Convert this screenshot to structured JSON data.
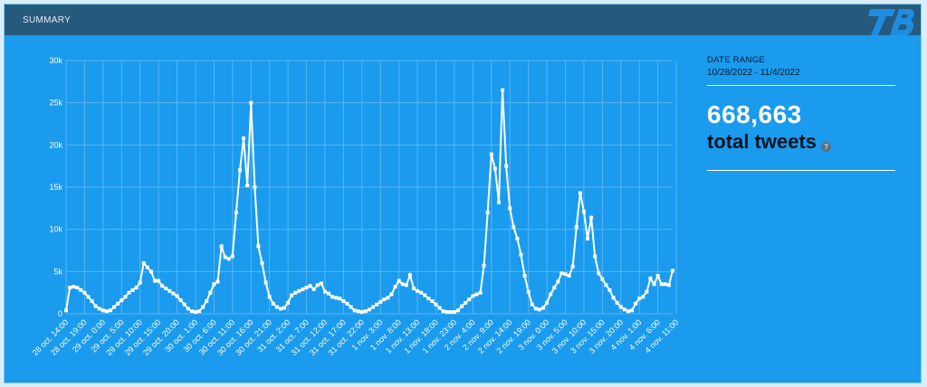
{
  "header": {
    "title": "SUMMARY",
    "logo_icon": "tb-logo-icon"
  },
  "side_panel": {
    "date_range_label": "DATE RANGE",
    "date_range_value": "10/28/2022 - 11/4/2022",
    "total_count": "668,663",
    "total_label": "total tweets",
    "help_icon": "?"
  },
  "colors": {
    "background": "#1a9bee",
    "header": "#265a7c",
    "line": "#ffffff",
    "grid": "#5ab6f3"
  },
  "chart_data": {
    "type": "line",
    "title": "",
    "xlabel": "",
    "ylabel": "",
    "ylim": [
      0,
      30000
    ],
    "y_ticks": [
      0,
      5000,
      10000,
      15000,
      20000,
      25000,
      30000
    ],
    "y_tick_labels": [
      "0",
      "5k",
      "10k",
      "15k",
      "20k",
      "25k",
      "30k"
    ],
    "grid": true,
    "tick_labels": [
      "28 oct. 14:00",
      "28 oct. 19:00",
      "29 oct. 0:00",
      "29 oct. 5:00",
      "29 oct. 10:00",
      "29 oct. 15:00",
      "29 oct. 20:00",
      "30 oct. 1:00",
      "30 oct. 6:00",
      "30 oct. 11:00",
      "30 oct. 16:00",
      "30 oct. 21:00",
      "31 oct. 2:00",
      "31 oct. 7:00",
      "31 oct. 12:00",
      "31 oct. 17:00",
      "31 oct. 22:00",
      "1 nov. 3:00",
      "1 nov. 8:00",
      "1 nov. 13:00",
      "1 nov. 18:00",
      "1 nov. 23:00",
      "2 nov. 4:00",
      "2 nov. 9:00",
      "2 nov. 14:00",
      "2 nov. 19:00",
      "3 nov. 0:00",
      "3 nov. 5:00",
      "3 nov. 10:00",
      "3 nov. 15:00",
      "3 nov. 20:00",
      "4 nov. 1:00",
      "4 nov. 6:00",
      "4 nov. 11:00"
    ],
    "series": [
      {
        "values": [
          400,
          3100,
          3200,
          3100,
          2800,
          2500,
          2000,
          1500,
          900,
          600,
          400,
          300,
          400,
          800,
          1200,
          1600,
          2000,
          2500,
          2800,
          3100,
          3700,
          6000,
          5500,
          5000,
          3900,
          3900,
          3300,
          3000,
          2700,
          2400,
          2100,
          1600,
          1100,
          600,
          300,
          200,
          300,
          800,
          1500,
          2500,
          3500,
          3800,
          8000,
          6700,
          6500,
          6800,
          12000,
          17000,
          20800,
          15200,
          25000,
          15000,
          8000,
          6000,
          3700,
          2000,
          1200,
          800,
          600,
          700,
          1300,
          2200,
          2500,
          2700,
          2900,
          3100,
          3300,
          2900,
          3400,
          3600,
          2600,
          2400,
          2000,
          1900,
          1800,
          1500,
          1200,
          800,
          400,
          300,
          200,
          300,
          500,
          800,
          1100,
          1400,
          1700,
          1900,
          2300,
          3200,
          3900,
          3500,
          3400,
          4600,
          3000,
          2700,
          2500,
          2200,
          1800,
          1500,
          1100,
          700,
          300,
          200,
          200,
          200,
          400,
          900,
          1300,
          1700,
          2100,
          2300,
          2500,
          5700,
          12000,
          18900,
          17200,
          13200,
          26500,
          17500,
          12500,
          10300,
          8900,
          7000,
          4500,
          2600,
          1100,
          600,
          500,
          700,
          1300,
          2300,
          3100,
          3800,
          4800,
          4700,
          4500,
          5600,
          10300,
          14300,
          12100,
          8900,
          11400,
          6800,
          4800,
          4100,
          3400,
          2800,
          1900,
          1300,
          800,
          500,
          300,
          400,
          1200,
          1800,
          2000,
          2600,
          4200,
          3500,
          4500,
          3500,
          3500,
          3400,
          5100
        ]
      }
    ]
  }
}
